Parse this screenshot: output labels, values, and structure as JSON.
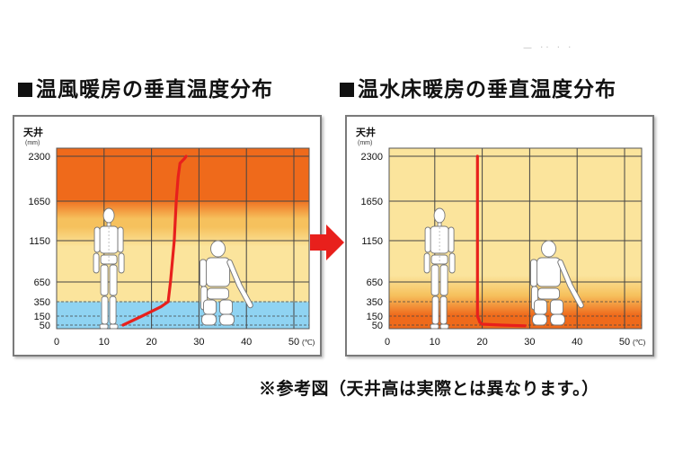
{
  "footnote": "※参考図（天井高は実際とは異なります。）",
  "colors": {
    "curve": "#e8201c",
    "hot": "#ef6a1b",
    "warm": "#f6c15d",
    "pale": "#fbe49c",
    "cool": "#8fd3f2",
    "grid": "#444444",
    "arrow": "#e8201c"
  },
  "chart_data": [
    {
      "type": "line",
      "title": "温風暖房の垂直温度分布",
      "ylabel_top": "天井",
      "yunit": "(mm)",
      "xunit": "(℃)",
      "xlim": [
        0,
        50
      ],
      "ylim": [
        0,
        2300
      ],
      "xticks": [
        "0",
        "10",
        "20",
        "30",
        "40",
        "50"
      ],
      "yticks": [
        "50",
        "150",
        "350",
        "650",
        "1150",
        "1650",
        "2300"
      ],
      "series": [
        {
          "x": [
            14,
            18,
            22,
            23.5,
            24,
            24.8,
            25.2,
            25.6,
            26,
            27,
            27.3
          ],
          "y": [
            50,
            150,
            280,
            350,
            650,
            1150,
            1650,
            2000,
            2200,
            2270,
            2300
          ]
        }
      ],
      "bands": [
        {
          "from": 0,
          "to": 350,
          "color": "cool"
        },
        {
          "from": 350,
          "to": 1200,
          "color": "pale"
        },
        {
          "from": 1200,
          "to": 1550,
          "color": "warm"
        },
        {
          "from": 1550,
          "to": 2350,
          "color": "hot"
        }
      ]
    },
    {
      "type": "line",
      "title": "温水床暖房の垂直温度分布",
      "ylabel_top": "天井",
      "yunit": "(mm)",
      "xunit": "(℃)",
      "xlim": [
        0,
        50
      ],
      "ylim": [
        0,
        2300
      ],
      "xticks": [
        "0",
        "10",
        "20",
        "30",
        "40",
        "50"
      ],
      "yticks": [
        "50",
        "150",
        "350",
        "650",
        "1150",
        "1650",
        "2300"
      ],
      "series": [
        {
          "x": [
            19,
            19,
            19,
            19,
            19,
            19,
            19.5,
            20,
            24,
            29
          ],
          "y": [
            2300,
            1650,
            1150,
            650,
            350,
            150,
            80,
            60,
            50,
            40
          ]
        }
      ],
      "bands": [
        {
          "from": 0,
          "to": 300,
          "color": "hot"
        },
        {
          "from": 300,
          "to": 600,
          "color": "warm"
        },
        {
          "from": 600,
          "to": 2350,
          "color": "pale"
        }
      ]
    }
  ]
}
